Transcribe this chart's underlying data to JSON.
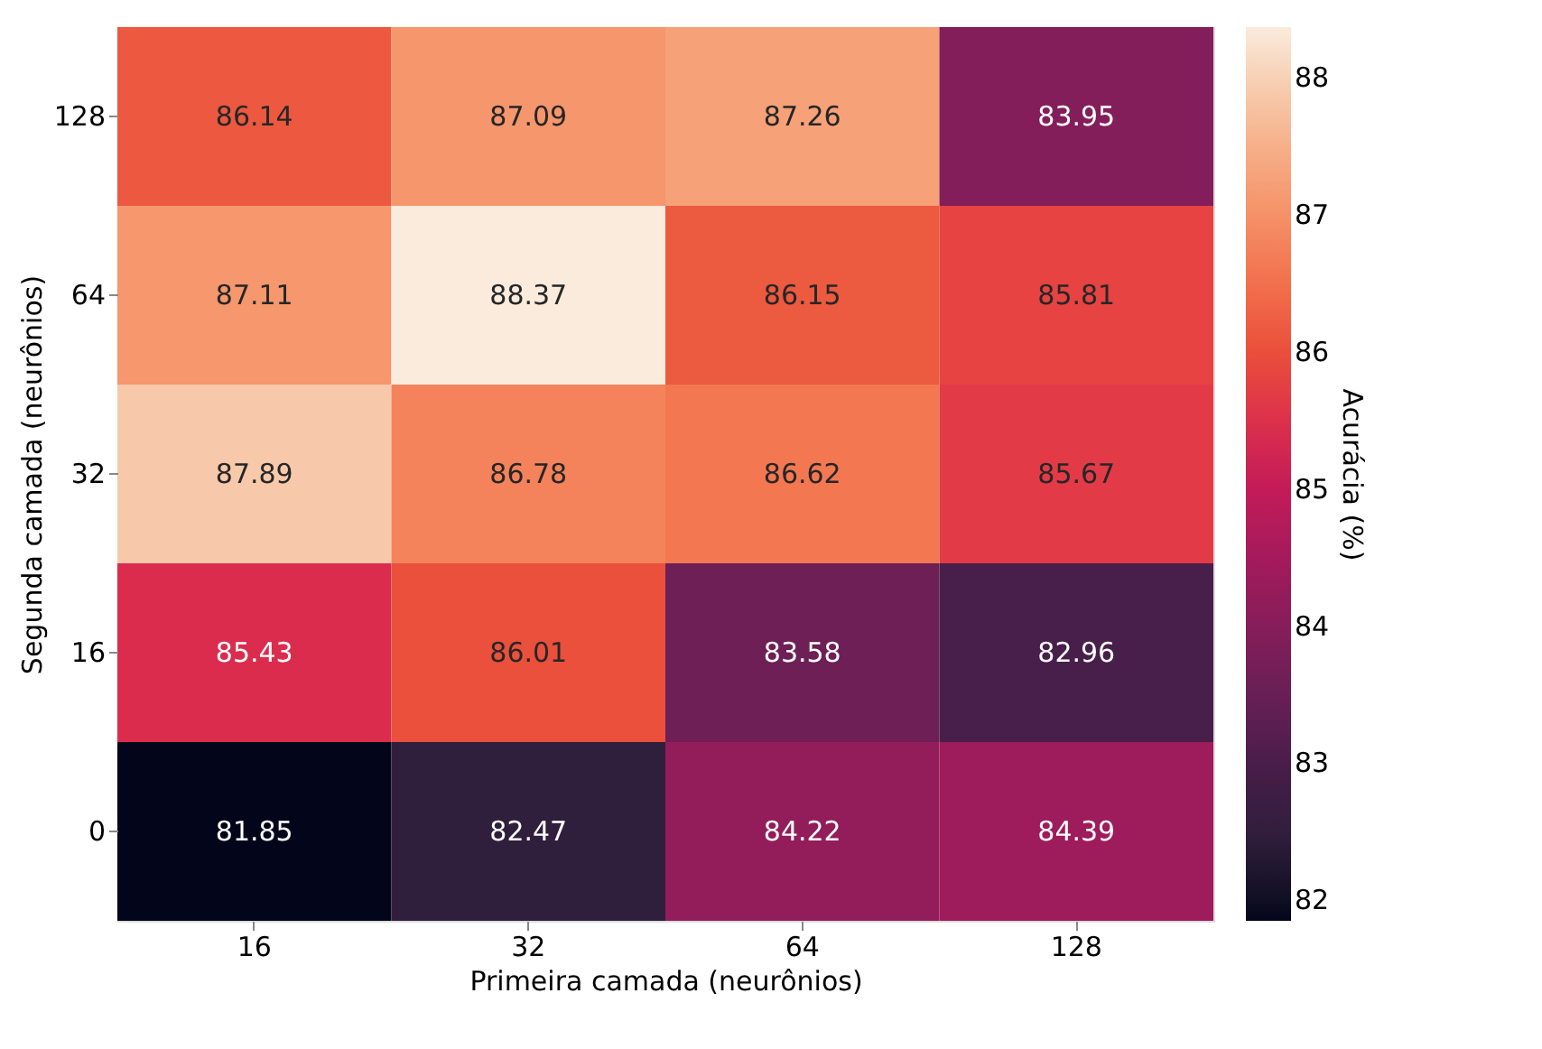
{
  "chart_data": {
    "type": "heatmap",
    "xlabel": "Primeira camada (neurônios)",
    "ylabel": "Segunda camada (neurônios)",
    "clabel": "Acurácia (%)",
    "categories": [
      "16",
      "32",
      "64",
      "128"
    ],
    "y_categories": [
      "128",
      "64",
      "32",
      "16",
      "0"
    ],
    "cells": [
      [
        86.14,
        87.09,
        87.26,
        83.95
      ],
      [
        87.11,
        88.37,
        86.15,
        85.81
      ],
      [
        87.89,
        86.78,
        86.62,
        85.67
      ],
      [
        85.43,
        86.01,
        83.58,
        82.96
      ],
      [
        81.85,
        82.47,
        84.22,
        84.39
      ]
    ],
    "clim": [
      81.85,
      88.37
    ],
    "cticks": [
      82,
      83,
      84,
      85,
      86,
      87,
      88
    ],
    "data_labels": true
  }
}
